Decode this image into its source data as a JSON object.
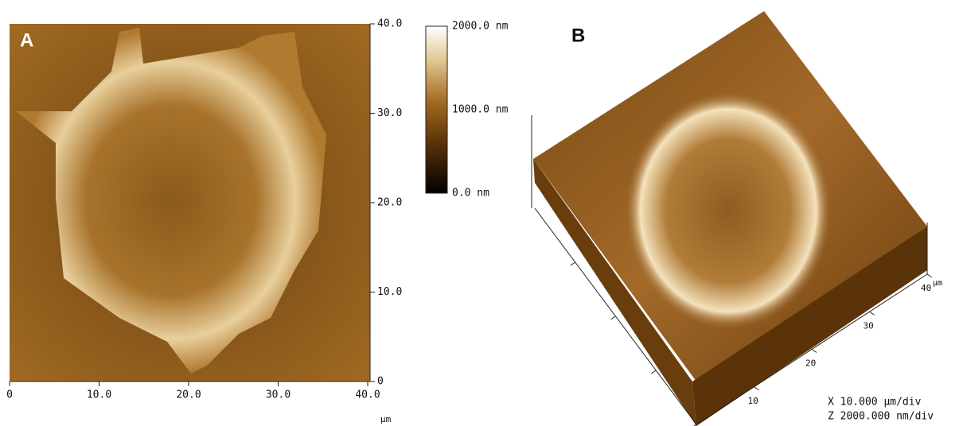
{
  "panel_a": {
    "label": "A",
    "x_ticks": [
      "0",
      "10.0",
      "20.0",
      "30.0",
      "40.0"
    ],
    "x_unit": "µm",
    "y_ticks": [
      "40.0",
      "30.0",
      "20.0",
      "10.0",
      "0"
    ]
  },
  "colorbar": {
    "labels": [
      "2000.0 nm",
      "1000.0 nm",
      "0.0 nm"
    ]
  },
  "panel_b": {
    "label": "B",
    "axis_ticks": [
      "10",
      "20",
      "30",
      "40"
    ],
    "unit": "µm",
    "scale": [
      "X  10.000 µm/div",
      "Z  2000.000 nm/div"
    ]
  }
}
